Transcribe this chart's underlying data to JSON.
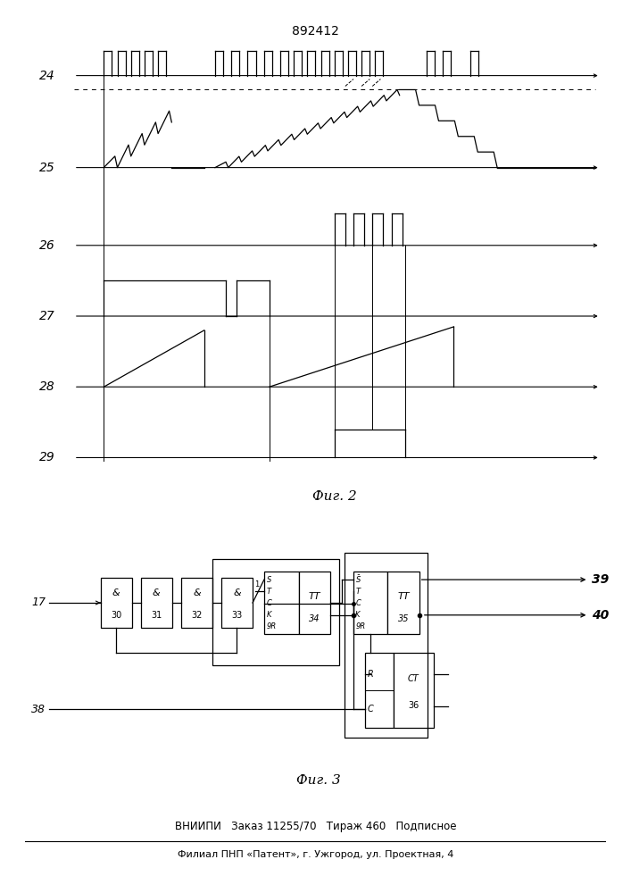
{
  "title": "892412",
  "fig2_label": "Фиг. 2",
  "fig3_label": "Фиг. 3",
  "footer_line1": "ВНИИПИ   Заказ 11255/70   Тираж 460   Подписное",
  "footer_line2": "Филиал ПНП «Патент», г. Ужгород, ул. Проектная, 4",
  "signal_labels": [
    "24",
    "25",
    "26",
    "27",
    "28",
    "29"
  ],
  "input_label": "17",
  "output39": "39",
  "output40": "40",
  "input38": "38"
}
